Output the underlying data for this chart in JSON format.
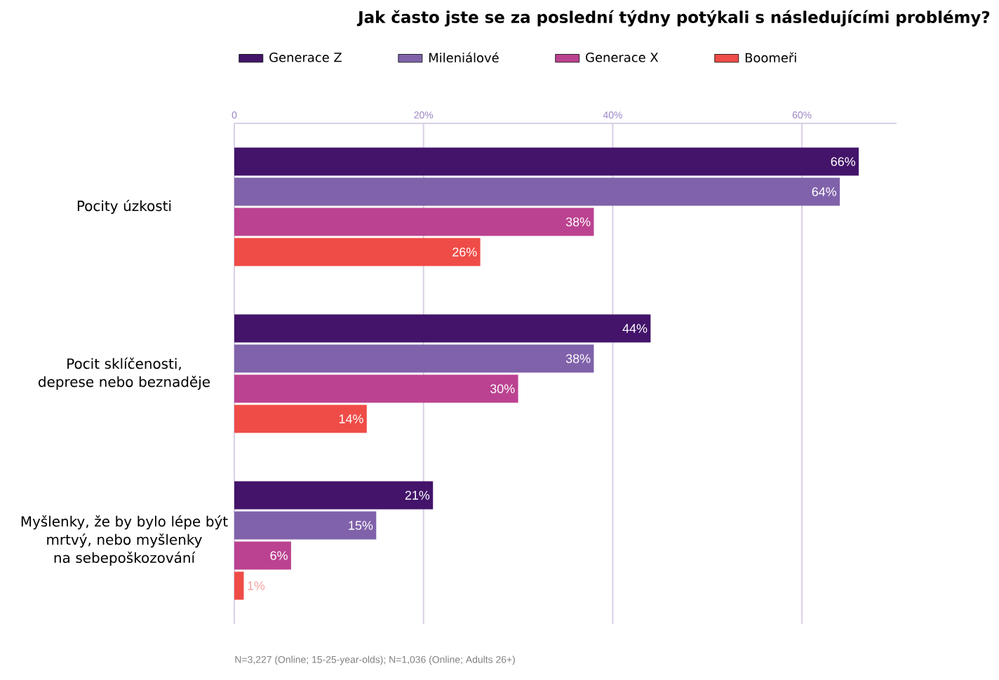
{
  "chart_data": {
    "type": "bar",
    "orientation": "horizontal",
    "title": "Jak často jste se za poslední týdny potýkali s následujícími problémy?",
    "categories": [
      "Pocity úzkosti",
      "Pocit sklíčenosti, deprese nebo beznaděje",
      "Myšlenky, že by bylo lépe být mrtvý, nebo myšlenky na sebepoškozování"
    ],
    "series": [
      {
        "name": "Generace Z",
        "color": "#43146a",
        "values": [
          66,
          44,
          21
        ],
        "value_labels": [
          "66%",
          "44%",
          "21%"
        ]
      },
      {
        "name": "Mileniálové",
        "color": "#8062aa",
        "values": [
          64,
          38,
          15
        ],
        "value_labels": [
          "64%",
          "38%",
          "15%"
        ]
      },
      {
        "name": "Generace X",
        "color": "#bb4290",
        "values": [
          38,
          30,
          6
        ],
        "value_labels": [
          "38%",
          "30%",
          "6%"
        ]
      },
      {
        "name": "Boomeři",
        "color": "#ef4c47",
        "values": [
          26,
          14,
          1
        ],
        "value_labels": [
          "26%",
          "14%",
          "1%"
        ]
      }
    ],
    "xlim": [
      0,
      70
    ],
    "xticks": [
      0,
      {
        "value": 20,
        "label": "20%"
      },
      {
        "value": 40,
        "label": "40%"
      },
      {
        "value": 60,
        "label": "60%"
      }
    ],
    "grid": "x",
    "legend": "top",
    "annotations": [
      "N=3,227 (Online; 15-25-year-olds); N=1,036 (Online; Adults 26+)"
    ]
  }
}
